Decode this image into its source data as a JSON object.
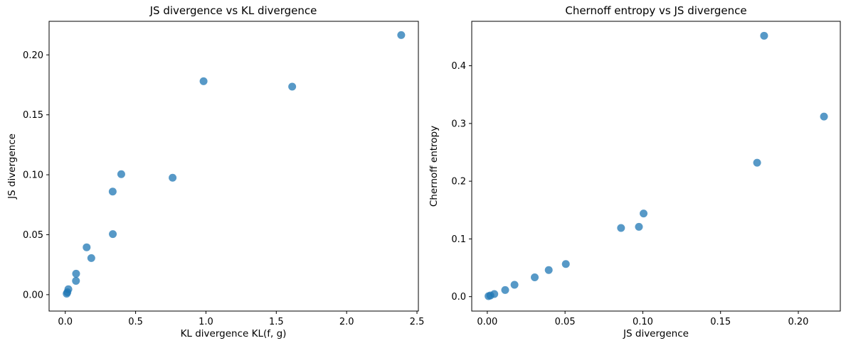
{
  "figure": {
    "background": "#ffffff",
    "marker_color": "#1f77b4",
    "marker_opacity": 0.75,
    "marker_radius": 5.5
  },
  "chart_data": [
    {
      "type": "scatter",
      "title": "JS divergence vs KL divergence",
      "xlabel": "KL divergence KL(f, g)",
      "ylabel": "JS divergence",
      "xlim": [
        -0.115,
        2.51
      ],
      "ylim": [
        -0.0137,
        0.228
      ],
      "xticks": [
        0.0,
        0.5,
        1.0,
        1.5,
        2.0,
        2.5
      ],
      "xtick_labels": [
        "0.0",
        "0.5",
        "1.0",
        "1.5",
        "2.0",
        "2.5"
      ],
      "yticks": [
        0.0,
        0.05,
        0.1,
        0.15,
        0.2
      ],
      "ytick_labels": [
        "0.00",
        "0.05",
        "0.10",
        "0.15",
        "0.20"
      ],
      "grid": false,
      "points": [
        [
          0.01,
          0.0008
        ],
        [
          0.015,
          0.002
        ],
        [
          0.022,
          0.0045
        ],
        [
          0.076,
          0.0115
        ],
        [
          0.077,
          0.0175
        ],
        [
          0.185,
          0.0305
        ],
        [
          0.152,
          0.0395
        ],
        [
          0.338,
          0.0505
        ],
        [
          0.337,
          0.086
        ],
        [
          0.398,
          0.1005
        ],
        [
          0.763,
          0.0975
        ],
        [
          1.613,
          0.1735
        ],
        [
          0.983,
          0.178
        ],
        [
          2.388,
          0.2165
        ]
      ]
    },
    {
      "type": "scatter",
      "title": "Chernoff entropy vs JS divergence",
      "xlabel": "JS divergence",
      "ylabel": "Chernoff entropy",
      "xlim": [
        -0.01,
        0.227
      ],
      "ylim": [
        -0.025,
        0.477
      ],
      "xticks": [
        0.0,
        0.05,
        0.1,
        0.15,
        0.2
      ],
      "xtick_labels": [
        "0.00",
        "0.05",
        "0.10",
        "0.15",
        "0.20"
      ],
      "yticks": [
        0.0,
        0.1,
        0.2,
        0.3,
        0.4
      ],
      "ytick_labels": [
        "0.0",
        "0.1",
        "0.2",
        "0.3",
        "0.4"
      ],
      "grid": false,
      "points": [
        [
          0.0008,
          0.0008
        ],
        [
          0.002,
          0.002
        ],
        [
          0.0045,
          0.0045
        ],
        [
          0.0115,
          0.0115
        ],
        [
          0.0175,
          0.0205
        ],
        [
          0.0305,
          0.0335
        ],
        [
          0.0395,
          0.046
        ],
        [
          0.0505,
          0.0565
        ],
        [
          0.086,
          0.119
        ],
        [
          0.0975,
          0.121
        ],
        [
          0.1005,
          0.144
        ],
        [
          0.1735,
          0.232
        ],
        [
          0.178,
          0.452
        ],
        [
          0.2165,
          0.312
        ]
      ]
    }
  ]
}
